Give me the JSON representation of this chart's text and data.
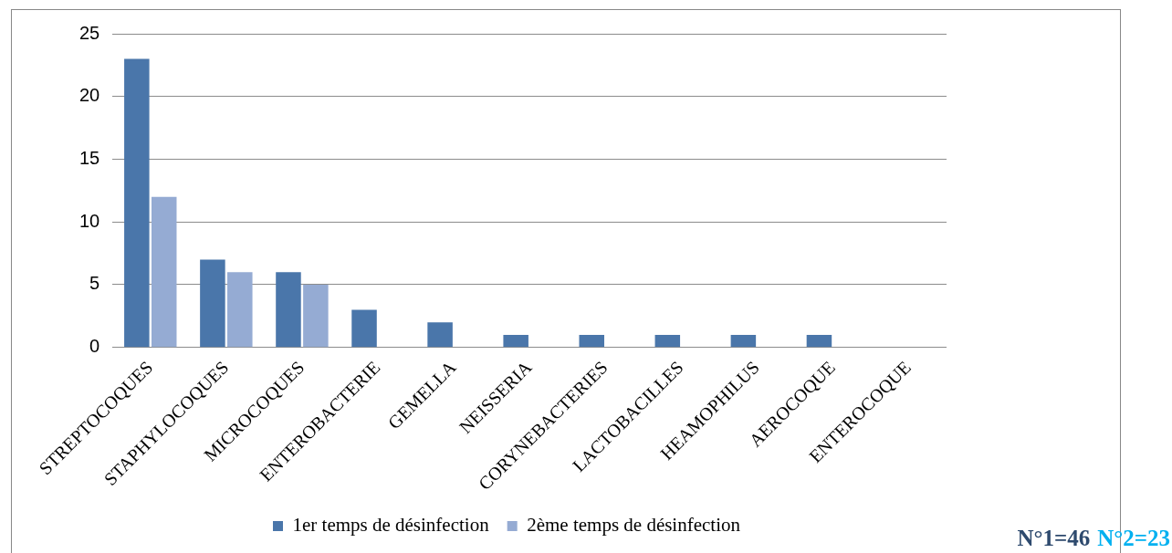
{
  "chart_data": {
    "type": "bar",
    "categories": [
      "STREPTOCOQUES",
      "STAPHYLOCOQUES",
      "MICROCOQUES",
      "ENTEROBACTERIE",
      "GEMELLA",
      "NEISSERIA",
      "CORYNEBACTERIES",
      "LACTOBACILLES",
      "HEAMOPHILUS",
      "AEROCOQUE",
      "ENTEROCOQUE"
    ],
    "series": [
      {
        "name": "1er temps de désinfection",
        "color": "#4a76aa",
        "values": [
          23,
          7,
          6,
          3,
          2,
          1,
          1,
          1,
          1,
          1,
          0
        ]
      },
      {
        "name": "2ème temps de désinfection",
        "color": "#95abd3",
        "values": [
          12,
          6,
          5,
          0,
          0,
          0,
          0,
          0,
          0,
          0,
          0
        ]
      }
    ],
    "ylim": [
      0,
      25
    ],
    "yticks": [
      0,
      5,
      10,
      15,
      20,
      25
    ],
    "grid": "y",
    "legend": "bottom",
    "annotations": [
      "N°1=46",
      "N°2=23"
    ]
  }
}
